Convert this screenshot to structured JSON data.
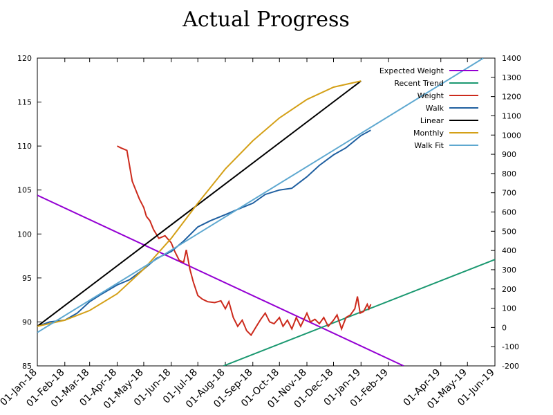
{
  "chart_data": {
    "type": "line",
    "title": "Actual Progress",
    "xlim": [
      "2018-01-01",
      "2019-06-01"
    ],
    "xticks": [
      {
        "value": "2018-01-01",
        "label": "01-Jan-18"
      },
      {
        "value": "2018-02-01",
        "label": "01-Feb-18"
      },
      {
        "value": "2018-03-01",
        "label": "01-Mar-18"
      },
      {
        "value": "2018-04-01",
        "label": "01-Apr-18"
      },
      {
        "value": "2018-05-01",
        "label": "01-May-18"
      },
      {
        "value": "2018-06-01",
        "label": "01-Jun-18"
      },
      {
        "value": "2018-07-01",
        "label": "01-Jul-18"
      },
      {
        "value": "2018-08-01",
        "label": "01-Aug-18"
      },
      {
        "value": "2018-09-01",
        "label": "01-Sep-18"
      },
      {
        "value": "2018-10-01",
        "label": "01-Oct-18"
      },
      {
        "value": "2018-11-01",
        "label": "01-Nov-18"
      },
      {
        "value": "2018-12-01",
        "label": "01-Dec-18"
      },
      {
        "value": "2019-01-01",
        "label": "01-Jan-19"
      },
      {
        "value": "2019-02-01",
        "label": "01-Feb-19"
      },
      {
        "value": "2019-04-01",
        "label": "01-Apr-19"
      },
      {
        "value": "2019-05-01",
        "label": "01-May-19"
      },
      {
        "value": "2019-06-01",
        "label": "01-Jun-19"
      }
    ],
    "ylim": [
      85,
      120
    ],
    "yticks": [
      85,
      90,
      95,
      100,
      105,
      110,
      115,
      120
    ],
    "y2lim": [
      -200,
      1400
    ],
    "y2ticks": [
      -200,
      -100,
      0,
      100,
      200,
      300,
      400,
      500,
      600,
      700,
      800,
      900,
      1000,
      1100,
      1200,
      1300,
      1400
    ],
    "legend": "upper right",
    "series": [
      {
        "name": "Expected Weight",
        "color": "#9400d3",
        "x": [
          "2018-01-01",
          "2019-02-18"
        ],
        "values": [
          104.4,
          85
        ]
      },
      {
        "name": "Recent Trend",
        "color": "#1a9870",
        "x": [
          "2018-07-30",
          "2019-06-01"
        ],
        "values": [
          85,
          97.1
        ]
      },
      {
        "name": "Weight",
        "color": "#cc2a1c",
        "x": [
          "2018-04-01",
          "2018-04-05",
          "2018-04-12",
          "2018-04-18",
          "2018-04-22",
          "2018-04-26",
          "2018-05-01",
          "2018-05-04",
          "2018-05-08",
          "2018-05-12",
          "2018-05-18",
          "2018-05-25",
          "2018-06-01",
          "2018-06-05",
          "2018-06-10",
          "2018-06-15",
          "2018-06-18",
          "2018-06-22",
          "2018-06-26",
          "2018-07-01",
          "2018-07-06",
          "2018-07-12",
          "2018-07-20",
          "2018-07-27",
          "2018-08-01",
          "2018-08-05",
          "2018-08-10",
          "2018-08-15",
          "2018-08-20",
          "2018-08-25",
          "2018-08-30",
          "2018-09-05",
          "2018-09-10",
          "2018-09-15",
          "2018-09-20",
          "2018-09-25",
          "2018-10-01",
          "2018-10-05",
          "2018-10-10",
          "2018-10-15",
          "2018-10-20",
          "2018-10-25",
          "2018-11-01",
          "2018-11-05",
          "2018-11-10",
          "2018-11-15",
          "2018-11-20",
          "2018-11-25",
          "2018-12-01",
          "2018-12-05",
          "2018-12-10",
          "2018-12-15",
          "2018-12-20",
          "2018-12-25",
          "2018-12-28",
          "2018-12-31",
          "2019-01-04",
          "2019-01-08",
          "2019-01-10",
          "2019-01-12"
        ],
        "values": [
          110,
          109.8,
          109.5,
          106,
          105,
          104,
          103,
          102,
          101.5,
          100.5,
          99.5,
          99.8,
          99,
          98,
          97,
          96.8,
          98.2,
          96,
          94.5,
          93,
          92.6,
          92.3,
          92.2,
          92.4,
          91.5,
          92.3,
          90.5,
          89.5,
          90.2,
          89,
          88.5,
          89.5,
          90.3,
          91,
          90,
          89.8,
          90.5,
          89.5,
          90.2,
          89.2,
          90.5,
          89.5,
          91,
          90,
          90.3,
          89.8,
          90.5,
          89.5,
          90.2,
          90.8,
          89.2,
          90.5,
          90.8,
          91.5,
          92.9,
          91,
          91.2,
          92,
          91.5,
          92
        ]
      },
      {
        "name": "Walk",
        "color": "#1f5fa0",
        "x": [
          "2018-01-01",
          "2018-01-15",
          "2018-02-01",
          "2018-02-15",
          "2018-03-01",
          "2018-03-15",
          "2018-04-01",
          "2018-04-15",
          "2018-05-01",
          "2018-05-15",
          "2018-06-01",
          "2018-06-15",
          "2018-07-01",
          "2018-07-15",
          "2018-08-01",
          "2018-08-15",
          "2018-09-01",
          "2018-09-15",
          "2018-10-01",
          "2018-10-15",
          "2018-11-01",
          "2018-11-15",
          "2018-12-01",
          "2018-12-15",
          "2019-01-01",
          "2019-01-12"
        ],
        "values": [
          89.5,
          90,
          90.2,
          91,
          92.3,
          93.2,
          94.2,
          94.8,
          96,
          97.2,
          98,
          99.2,
          100.8,
          101.5,
          102.2,
          102.8,
          103.5,
          104.5,
          105,
          105.2,
          106.5,
          107.8,
          109,
          109.8,
          111.2,
          111.8
        ]
      },
      {
        "name": "Linear",
        "color": "#000000",
        "x": [
          "2018-01-01",
          "2019-01-01"
        ],
        "values": [
          89.5,
          117.4
        ]
      },
      {
        "name": "Monthly",
        "color": "#d4a017",
        "x": [
          "2018-01-01",
          "2018-02-01",
          "2018-03-01",
          "2018-04-01",
          "2018-05-01",
          "2018-06-01",
          "2018-07-01",
          "2018-08-01",
          "2018-09-01",
          "2018-10-01",
          "2018-11-01",
          "2018-12-01",
          "2019-01-01"
        ],
        "values": [
          89.5,
          90.2,
          91.3,
          93.2,
          96,
          99.5,
          103.5,
          107.4,
          110.6,
          113.2,
          115.3,
          116.7,
          117.4
        ]
      },
      {
        "name": "Walk Fit",
        "color": "#5ea8d0",
        "x": [
          "2018-01-01",
          "2019-05-19"
        ],
        "values": [
          88.8,
          120
        ]
      }
    ]
  }
}
